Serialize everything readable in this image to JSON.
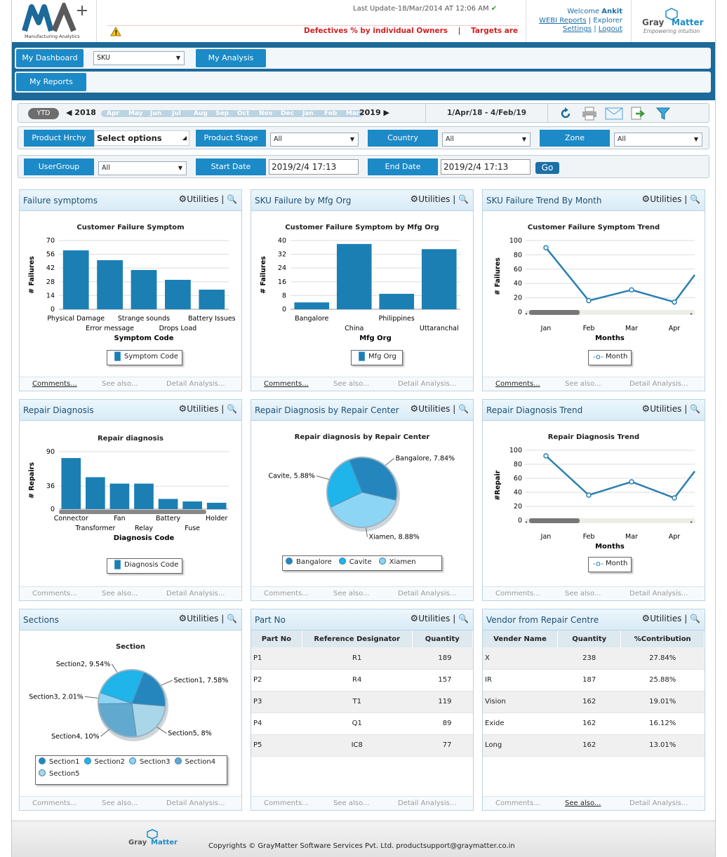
{
  "header": {
    "logo_text": "Manufacturing Analytics",
    "last_update": "Last Update-18/Mar/2014 AT 12:06 AM",
    "ticker": "Defectives % by individual Owners    |    Targets are d",
    "welcome_prefix": "Welcome",
    "user": "Ankit",
    "links": [
      "WEBI Reports",
      "Explorer",
      "Settings",
      "Logout"
    ],
    "brand": "Gray Matter",
    "brand_tagline": "Empowering intuition"
  },
  "nav": {
    "my_dashboard": "My Dashboard",
    "dashboard_select": "SKU",
    "my_analysis": "My Analysis",
    "my_reports": "My Reports"
  },
  "datebar": {
    "ytd": "YTD",
    "year_start": "2018",
    "year_end": "2019",
    "months": [
      "Apr",
      "May",
      "Jun",
      "Jul",
      "Aug",
      "Sep",
      "Oct",
      "Nov",
      "Dec",
      "Jan",
      "Feb",
      "Mar"
    ],
    "range": "1/Apr/18 - 4/Feb/19",
    "icons": [
      "refresh-icon",
      "print-icon",
      "email-icon",
      "export-icon",
      "filter-icon"
    ]
  },
  "filters": {
    "product_hrchy": "Product Hrchy",
    "product_hrchy_value": "Select options",
    "product_stage": "Product Stage",
    "product_stage_value": "All",
    "country": "Country",
    "country_value": "All",
    "zone": "Zone",
    "zone_value": "All",
    "usergroup": "UserGroup",
    "usergroup_value": "All",
    "start_date": "Start Date",
    "start_date_value": "2019/2/4 17:13",
    "end_date": "End Date",
    "end_date_value": "2019/2/4 17:13",
    "go": "Go"
  },
  "panel_common": {
    "utilities": "Utilities",
    "comments": "Comments...",
    "see_also": "See also...",
    "detail": "Detail Analysis..."
  },
  "panels": {
    "failure_symptoms": {
      "title": "Failure symptoms",
      "legend": "Symptom Code",
      "chart_data": {
        "type": "bar",
        "title": "Customer Failure Symptom",
        "xlabel": "Symptom Code",
        "ylabel": "# Failures",
        "categories": [
          "Physical Damage",
          "Error message",
          "Strange sounds",
          "Drops Load",
          "Battery Issues"
        ],
        "values": [
          60,
          50,
          40,
          30,
          20
        ],
        "ylim": [
          0,
          70
        ],
        "yticks": [
          "0",
          "14",
          "28",
          "42",
          "56",
          "70"
        ]
      }
    },
    "sku_failure_mfg": {
      "title": "SKU Failure by Mfg Org",
      "legend": "Mfg Org",
      "chart_data": {
        "type": "bar",
        "title": "Customer Failure Symptom by Mfg Org",
        "xlabel": "Mfg Org",
        "ylabel": "# Failures",
        "categories": [
          "Bangalore",
          "China",
          "Philippines",
          "Uttaranchal"
        ],
        "values": [
          4,
          38,
          9,
          35
        ],
        "ylim": [
          0,
          40
        ],
        "yticks": [
          "0",
          "8",
          "16",
          "24",
          "32",
          "40"
        ]
      }
    },
    "sku_failure_trend": {
      "title": "SKU Failure Trend By Month",
      "legend": "Month",
      "chart_data": {
        "type": "line",
        "title": "Customer Failure Symptom Trend",
        "xlabel": "Months",
        "ylabel": "# Failures",
        "categories": [
          "Jan",
          "Feb",
          "Mar",
          "Apr"
        ],
        "values": [
          90,
          16,
          31,
          14
        ],
        "ylim": [
          0,
          100
        ],
        "yticks": [
          "0",
          "20",
          "40",
          "60",
          "80",
          "100"
        ]
      }
    },
    "repair_diagnosis": {
      "title": "Repair Diagnosis",
      "legend": "Diagnosis Code",
      "chart_data": {
        "type": "bar",
        "title": "Repair diagnosis",
        "xlabel": "Diagnosis Code",
        "ylabel": "# Repairs",
        "categories": [
          "Connector",
          "Transformer",
          "Fan",
          "Relay",
          "Battery",
          "Fuse",
          "Holder"
        ],
        "values": [
          80,
          50,
          40,
          40,
          16,
          12,
          10
        ],
        "ylim": [
          0,
          90
        ],
        "yticks": [
          "0",
          "36",
          "90"
        ]
      }
    },
    "repair_by_center": {
      "title": "Repair Diagnosis by Repair Center",
      "legend": [
        "Bangalore",
        "Cavite",
        "Xiamen"
      ],
      "chart_data": {
        "type": "pie",
        "title": "Repair diagnosis by Repair Center",
        "labels": [
          "Bangalore, 7.84%",
          "Xiamen, 8.88%",
          "Cavite, 5.88%"
        ],
        "values": [
          7.84,
          8.88,
          5.88
        ],
        "colors": [
          "#2586bd",
          "#8dd5f5",
          "#1fb4ea"
        ]
      }
    },
    "repair_trend": {
      "title": "Repair Diagnosis Trend",
      "legend": "Month",
      "chart_data": {
        "type": "line",
        "title": "Repair Diagnosis Trend",
        "xlabel": "Months",
        "ylabel": "#Repair",
        "categories": [
          "Jan",
          "Feb",
          "Mar",
          "Apr"
        ],
        "values": [
          92,
          36,
          55,
          32
        ],
        "ylim": [
          0,
          100
        ],
        "yticks": [
          "0",
          "20",
          "40",
          "60",
          "80",
          "100"
        ]
      }
    },
    "sections": {
      "title": "Sections",
      "legend": [
        "Section1",
        "Section2",
        "Section3",
        "Section4",
        "Section5"
      ],
      "chart_data": {
        "type": "pie",
        "title": "Section",
        "labels": [
          "Section1, 7.58%",
          "Section5, 8%",
          "Section4, 10%",
          "Section3, 2.01%",
          "Section2, 9.54%"
        ],
        "values": [
          7.58,
          8,
          10,
          2.01,
          9.54
        ],
        "colors": [
          "#2586bd",
          "#a9d6e8",
          "#62a9cf",
          "#8cd4f4",
          "#1fb4ea"
        ]
      }
    },
    "part_no": {
      "title": "Part No",
      "columns": [
        "Part No",
        "Reference Designator",
        "Quantity"
      ],
      "rows": [
        [
          "P1",
          "R1",
          "189"
        ],
        [
          "P2",
          "R4",
          "157"
        ],
        [
          "P3",
          "T1",
          "119"
        ],
        [
          "P4",
          "Q1",
          "89"
        ],
        [
          "P5",
          "IC8",
          "77"
        ]
      ]
    },
    "vendor": {
      "title": "Vendor from Repair Centre",
      "columns": [
        "Vender Name",
        "Quantity",
        "%Contribution"
      ],
      "rows": [
        [
          "X",
          "238",
          "27.84%"
        ],
        [
          "IR",
          "187",
          "25.88%"
        ],
        [
          "Vision",
          "162",
          "19.01%"
        ],
        [
          "Exide",
          "162",
          "16.12%"
        ],
        [
          "Long",
          "162",
          "13.01%"
        ]
      ]
    }
  },
  "footer": {
    "brand": "Gray Matter",
    "copyright": "Copyrights © GrayMatter Software Services Pvt. Ltd. productsupport@graymatter.co.in"
  }
}
